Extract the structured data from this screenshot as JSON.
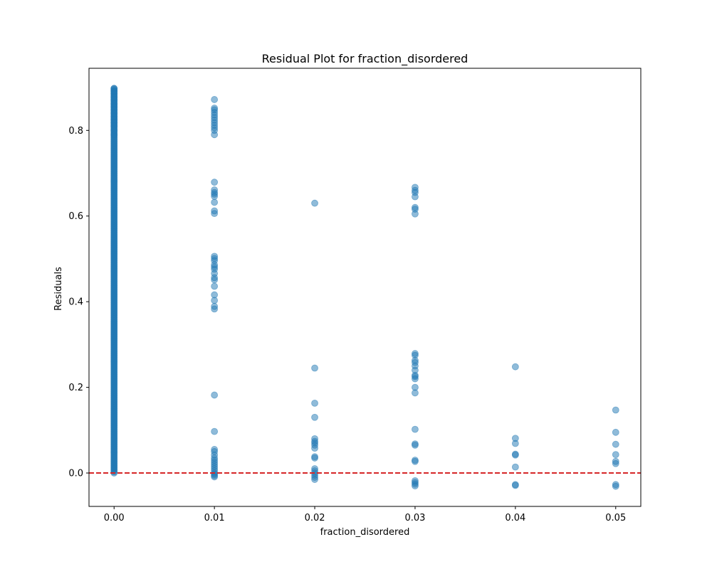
{
  "chart_data": {
    "type": "scatter",
    "title": "Residual Plot for fraction_disordered",
    "xlabel": "fraction_disordered",
    "ylabel": "Residuals",
    "xlim": [
      -0.0025,
      0.0525
    ],
    "ylim": [
      -0.078,
      0.945
    ],
    "xticks": [
      0.0,
      0.01,
      0.02,
      0.03,
      0.04,
      0.05
    ],
    "xtick_labels": [
      "0.00",
      "0.01",
      "0.02",
      "0.03",
      "0.04",
      "0.05"
    ],
    "yticks": [
      0.0,
      0.2,
      0.4,
      0.6,
      0.8
    ],
    "ytick_labels": [
      "0.0",
      "0.2",
      "0.4",
      "0.6",
      "0.8"
    ],
    "grid": false,
    "marker_color": "#1f77b4",
    "marker_alpha": 0.5,
    "reference_line": {
      "y": 0.0,
      "color": "#d62728",
      "style": "dashed"
    },
    "points_x0": {
      "x": 0.0,
      "y_min": 0.0,
      "y_max": 0.898,
      "y": [
        0.898,
        0.892,
        0.886,
        0.878,
        0.871,
        0.862,
        0.855,
        0.848,
        0.84,
        0.832,
        0.825,
        0.818,
        0.81,
        0.8,
        0.79
      ]
    },
    "series": [
      {
        "x": 0.01,
        "y": [
          0.872,
          0.852,
          0.848,
          0.842,
          0.836,
          0.83,
          0.824,
          0.818,
          0.812,
          0.806,
          0.8,
          0.79,
          0.679,
          0.661,
          0.655,
          0.651,
          0.646,
          0.632,
          0.612,
          0.606,
          0.506,
          0.501,
          0.496,
          0.486,
          0.481,
          0.476,
          0.466,
          0.456,
          0.451,
          0.436,
          0.416,
          0.403,
          0.389,
          0.383,
          0.182,
          0.097,
          0.055,
          0.05,
          0.042,
          0.035,
          0.03,
          0.025,
          0.02,
          0.015,
          0.01,
          0.005,
          0.0,
          -0.003,
          -0.006,
          -0.009
        ]
      },
      {
        "x": 0.02,
        "y": [
          0.63,
          0.245,
          0.163,
          0.13,
          0.08,
          0.074,
          0.07,
          0.065,
          0.058,
          0.038,
          0.035,
          0.01,
          0.005,
          0.0,
          -0.005,
          -0.01,
          -0.015
        ]
      },
      {
        "x": 0.03,
        "y": [
          0.667,
          0.66,
          0.655,
          0.645,
          0.62,
          0.616,
          0.605,
          0.279,
          0.275,
          0.263,
          0.258,
          0.25,
          0.24,
          0.228,
          0.225,
          0.22,
          0.2,
          0.187,
          0.102,
          0.068,
          0.065,
          0.03,
          0.027,
          -0.018,
          -0.022,
          -0.026,
          -0.03
        ]
      },
      {
        "x": 0.04,
        "y": [
          0.248,
          0.081,
          0.069,
          0.044,
          0.042,
          0.014,
          -0.027,
          -0.029
        ]
      },
      {
        "x": 0.05,
        "y": [
          0.147,
          0.095,
          0.067,
          0.043,
          0.027,
          0.022,
          -0.027,
          -0.031
        ]
      }
    ]
  }
}
